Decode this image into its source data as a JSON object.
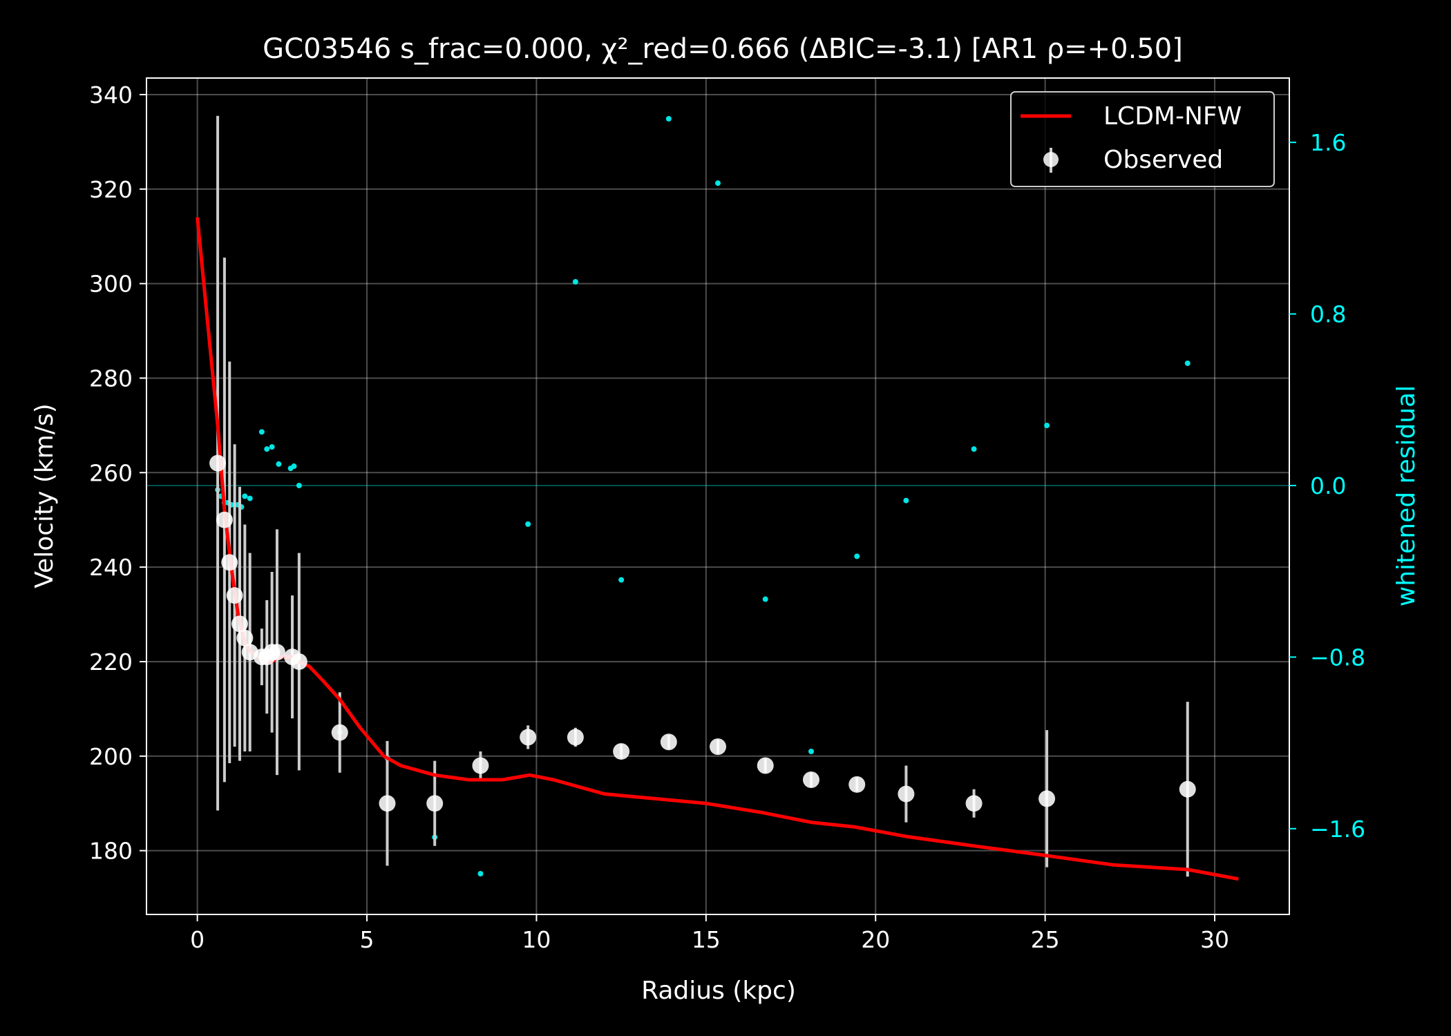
{
  "chart_data": {
    "type": "scatter",
    "title": "GC03546  s_frac=0.000, χ²_red=0.666  (ΔBIC=-3.1) [AR1 ρ=+0.50]",
    "xlabel": "Radius (kpc)",
    "ylabel": "Velocity (km/s)",
    "y2label": "whitened residual",
    "xlim": [
      -1.5,
      32.2
    ],
    "ylim": [
      166.5,
      343.5
    ],
    "y2lim": [
      -2.0,
      1.9
    ],
    "xticks": [
      "0",
      "5",
      "10",
      "15",
      "20",
      "25",
      "30"
    ],
    "yticks": [
      "180",
      "200",
      "220",
      "240",
      "260",
      "280",
      "300",
      "320",
      "340"
    ],
    "y2ticks": [
      "−1.6",
      "−0.8",
      "0.0",
      "0.8",
      "1.6"
    ],
    "grid": true,
    "legend_position": "top-right",
    "colors": {
      "background": "#000000",
      "model": "#ff0000",
      "observed": "#ffffff",
      "errorbar": "#cccccc",
      "residual": "#00e5e5",
      "axis2": "#00ffff"
    },
    "series": [
      {
        "name": "LCDM-NFW",
        "kind": "line",
        "x": [
          0,
          0.3,
          0.6,
          0.8,
          1.0,
          1.2,
          1.4,
          1.6,
          1.8,
          2.0,
          2.2,
          2.4,
          2.6,
          2.8,
          3.0,
          3.3,
          3.7,
          4.2,
          4.8,
          5.5,
          6.0,
          7.0,
          8.0,
          9.0,
          9.8,
          10.5,
          12.0,
          13.5,
          15.0,
          16.7,
          18.1,
          19.4,
          20.9,
          22.9,
          25.0,
          27.0,
          29.2,
          30.7
        ],
        "y": [
          314,
          292,
          270,
          252,
          240,
          230,
          224,
          222,
          221,
          220,
          220,
          221,
          221,
          221,
          220,
          219,
          216,
          212,
          206,
          200,
          198,
          196,
          195,
          195,
          196,
          195,
          192,
          191,
          190,
          188,
          186,
          185,
          183,
          181,
          179,
          177,
          176,
          174
        ]
      },
      {
        "name": "Observed",
        "kind": "errorbar",
        "x": [
          0.6,
          0.8,
          0.95,
          1.1,
          1.25,
          1.4,
          1.55,
          1.9,
          2.05,
          2.2,
          2.35,
          2.8,
          3.0,
          4.2,
          5.6,
          7.0,
          8.35,
          9.75,
          11.15,
          12.5,
          13.9,
          15.35,
          16.75,
          18.1,
          19.45,
          20.9,
          22.9,
          25.05,
          29.2
        ],
        "y": [
          262,
          250,
          241,
          234,
          228,
          225,
          222,
          221,
          221,
          222,
          222,
          221,
          220,
          205,
          190,
          190,
          198,
          204,
          204,
          201,
          203,
          202,
          198,
          195,
          194,
          192,
          190,
          191,
          193
        ],
        "yerr": [
          73.5,
          55.5,
          42.5,
          32,
          29,
          24,
          21,
          6,
          12,
          17,
          26,
          13,
          23,
          8.5,
          13.2,
          9,
          3,
          2.5,
          2,
          1.5,
          1.5,
          1.5,
          1.5,
          1.5,
          1.5,
          6,
          3,
          14.5,
          18.5
        ]
      },
      {
        "name": "",
        "kind": "residual-points",
        "axis": "right",
        "x": [
          0.6,
          0.7,
          0.8,
          0.9,
          1.0,
          1.1,
          1.2,
          1.3,
          1.4,
          1.55,
          1.9,
          2.05,
          2.2,
          2.4,
          2.75,
          2.85,
          3.0,
          4.2,
          5.6,
          7.0,
          8.35,
          9.75,
          11.15,
          12.5,
          13.9,
          15.35,
          16.75,
          18.1,
          19.45,
          20.9,
          22.9,
          25.05,
          29.2
        ],
        "y": [
          -0.02,
          -0.05,
          -0.08,
          -0.08,
          -0.09,
          -0.09,
          -0.09,
          -0.1,
          -0.05,
          -0.06,
          0.25,
          0.17,
          0.18,
          0.1,
          0.08,
          0.09,
          0.0,
          -1.15,
          -1.27,
          -1.64,
          -1.81,
          -0.18,
          0.95,
          -0.44,
          1.71,
          1.41,
          -0.53,
          -1.24,
          -0.33,
          -0.07,
          0.17,
          0.28,
          0.57
        ]
      }
    ]
  }
}
